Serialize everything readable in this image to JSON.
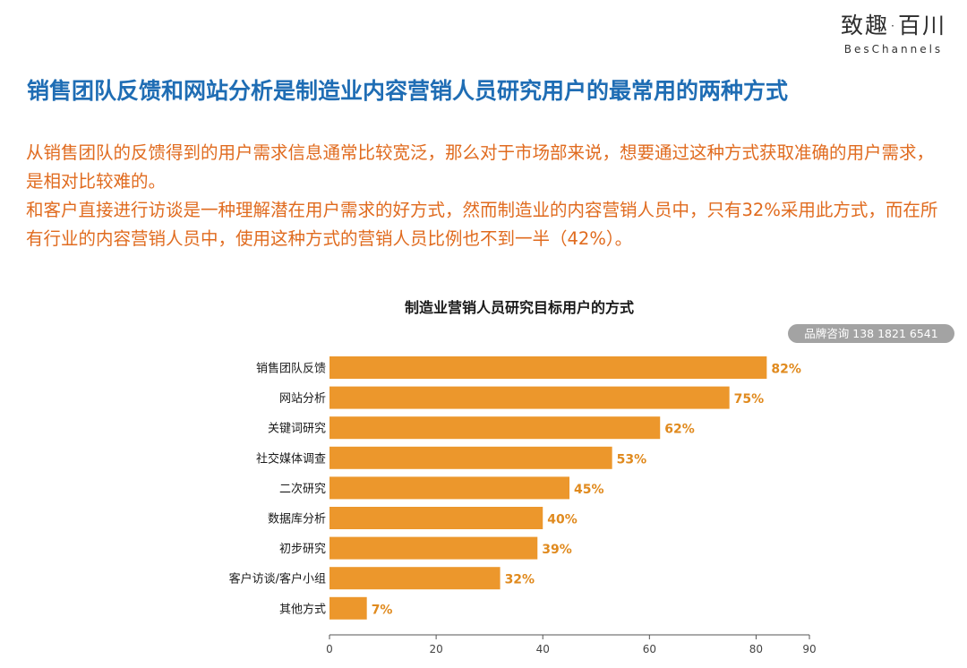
{
  "logo": {
    "cn": "致趣·百川",
    "en": "BesChannels"
  },
  "headline": "销售团队反馈和网站分析是制造业内容营销人员研究用户的最常用的两种方式",
  "intro": [
    "从销售团队的反馈得到的用户需求信息通常比较宽泛，那么对于市场部来说，想要通过这种方式获取准确的用户需求，是相对比较难的。",
    "和客户直接进行访谈是一种理解潜在用户需求的好方式，然而制造业的内容营销人员中，只有32%采用此方式，而在所有行业的内容营销人员中，使用这种方式的营销人员比例也不到一半（42%）。"
  ],
  "contact": "品牌咨询 138 1821 6541",
  "colors": {
    "bar": "#ec972c",
    "label": "#e08a1e",
    "headline": "#1f6db4",
    "intro": "#e06b1f"
  },
  "chart_data": {
    "type": "bar",
    "orientation": "horizontal",
    "title": "制造业营销人员研究目标用户的方式",
    "categories": [
      "销售团队反馈",
      "网站分析",
      "关键词研究",
      "社交媒体调查",
      "二次研究",
      "数据库分析",
      "初步研究",
      "客户访谈/客户小组",
      "其他方式"
    ],
    "values": [
      82,
      75,
      62,
      53,
      45,
      40,
      39,
      32,
      7
    ],
    "value_labels": [
      "82%",
      "75%",
      "62%",
      "53%",
      "45%",
      "40%",
      "39%",
      "32%",
      "7%"
    ],
    "xlim": [
      0,
      90
    ],
    "xticks": [
      0,
      20,
      40,
      60,
      80,
      90
    ],
    "xlabel": "",
    "ylabel": "",
    "grid": false,
    "legend": "none"
  }
}
